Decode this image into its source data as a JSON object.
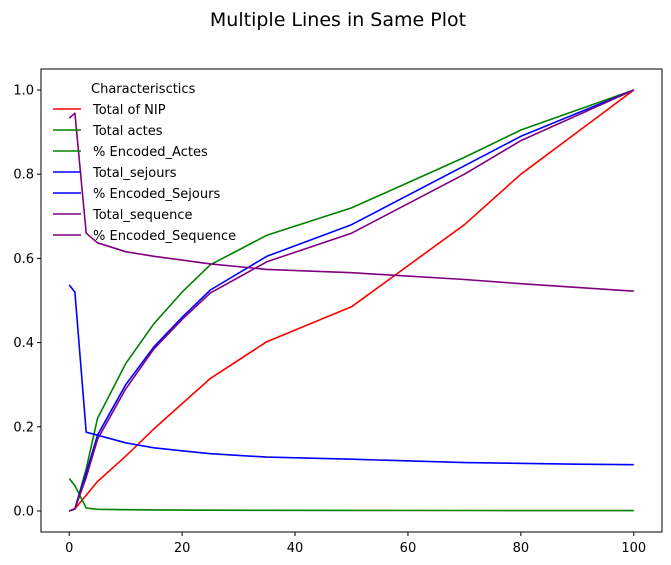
{
  "chart_data": {
    "type": "line",
    "title": "Multiple Lines in Same Plot",
    "xlabel": "",
    "ylabel": "",
    "xlim": [
      -5,
      105
    ],
    "ylim": [
      -0.05,
      1.05
    ],
    "xticks": [
      0,
      20,
      40,
      60,
      80,
      100
    ],
    "yticks": [
      0.0,
      0.2,
      0.4,
      0.6,
      0.8,
      1.0
    ],
    "xtick_labels": [
      "0",
      "20",
      "40",
      "60",
      "80",
      "100"
    ],
    "ytick_labels": [
      "0.0",
      "0.2",
      "0.4",
      "0.6",
      "0.8",
      "1.0"
    ],
    "grid": false,
    "legend": {
      "title": "Characterisctics",
      "position": "upper-left"
    },
    "series": [
      {
        "name": "Total of NIP",
        "color": "#ff0000",
        "x": [
          0,
          1,
          5,
          10,
          15,
          20,
          25,
          35,
          50,
          70,
          80,
          100
        ],
        "y": [
          0.0,
          0.005,
          0.07,
          0.13,
          0.195,
          0.255,
          0.315,
          0.402,
          0.485,
          0.68,
          0.8,
          1.0
        ]
      },
      {
        "name": "Total actes",
        "color": "#008000",
        "x": [
          0,
          1,
          3,
          5,
          10,
          15,
          20,
          25,
          35,
          50,
          70,
          100
        ],
        "y": [
          0.077,
          0.06,
          0.007,
          0.004,
          0.003,
          0.0025,
          0.002,
          0.0018,
          0.0015,
          0.0012,
          0.001,
          0.0008
        ]
      },
      {
        "name": "% Encoded_Actes",
        "color": "#008000",
        "x": [
          0,
          1,
          3,
          5,
          10,
          15,
          20,
          25,
          35,
          50,
          70,
          80,
          100
        ],
        "y": [
          0.0,
          0.005,
          0.1,
          0.22,
          0.35,
          0.445,
          0.52,
          0.585,
          0.655,
          0.72,
          0.84,
          0.905,
          1.0
        ]
      },
      {
        "name": "Total_sejours",
        "color": "#0000ff",
        "x": [
          0,
          1,
          3,
          5,
          10,
          15,
          20,
          25,
          35,
          50,
          70,
          90,
          100
        ],
        "y": [
          0.537,
          0.52,
          0.187,
          0.18,
          0.162,
          0.15,
          0.143,
          0.136,
          0.128,
          0.123,
          0.115,
          0.111,
          0.11
        ]
      },
      {
        "name": "% Encoded_Sejours",
        "color": "#0000ff",
        "x": [
          0,
          1,
          3,
          5,
          10,
          15,
          20,
          25,
          35,
          50,
          70,
          80,
          100
        ],
        "y": [
          0.0,
          0.005,
          0.09,
          0.18,
          0.3,
          0.39,
          0.46,
          0.525,
          0.605,
          0.68,
          0.82,
          0.89,
          1.0
        ]
      },
      {
        "name": "Total_sequence",
        "color": "#800080",
        "x": [
          0,
          1,
          3,
          5,
          10,
          15,
          20,
          25,
          35,
          50,
          70,
          80,
          100
        ],
        "y": [
          0.933,
          0.945,
          0.66,
          0.637,
          0.616,
          0.605,
          0.596,
          0.587,
          0.574,
          0.566,
          0.55,
          0.54,
          0.522
        ]
      },
      {
        "name": "% Encoded_Sequence",
        "color": "#800080",
        "x": [
          0,
          1,
          3,
          5,
          10,
          15,
          20,
          25,
          35,
          50,
          70,
          80,
          100
        ],
        "y": [
          0.0,
          0.005,
          0.08,
          0.17,
          0.29,
          0.385,
          0.455,
          0.518,
          0.592,
          0.66,
          0.8,
          0.88,
          1.0
        ]
      }
    ]
  }
}
